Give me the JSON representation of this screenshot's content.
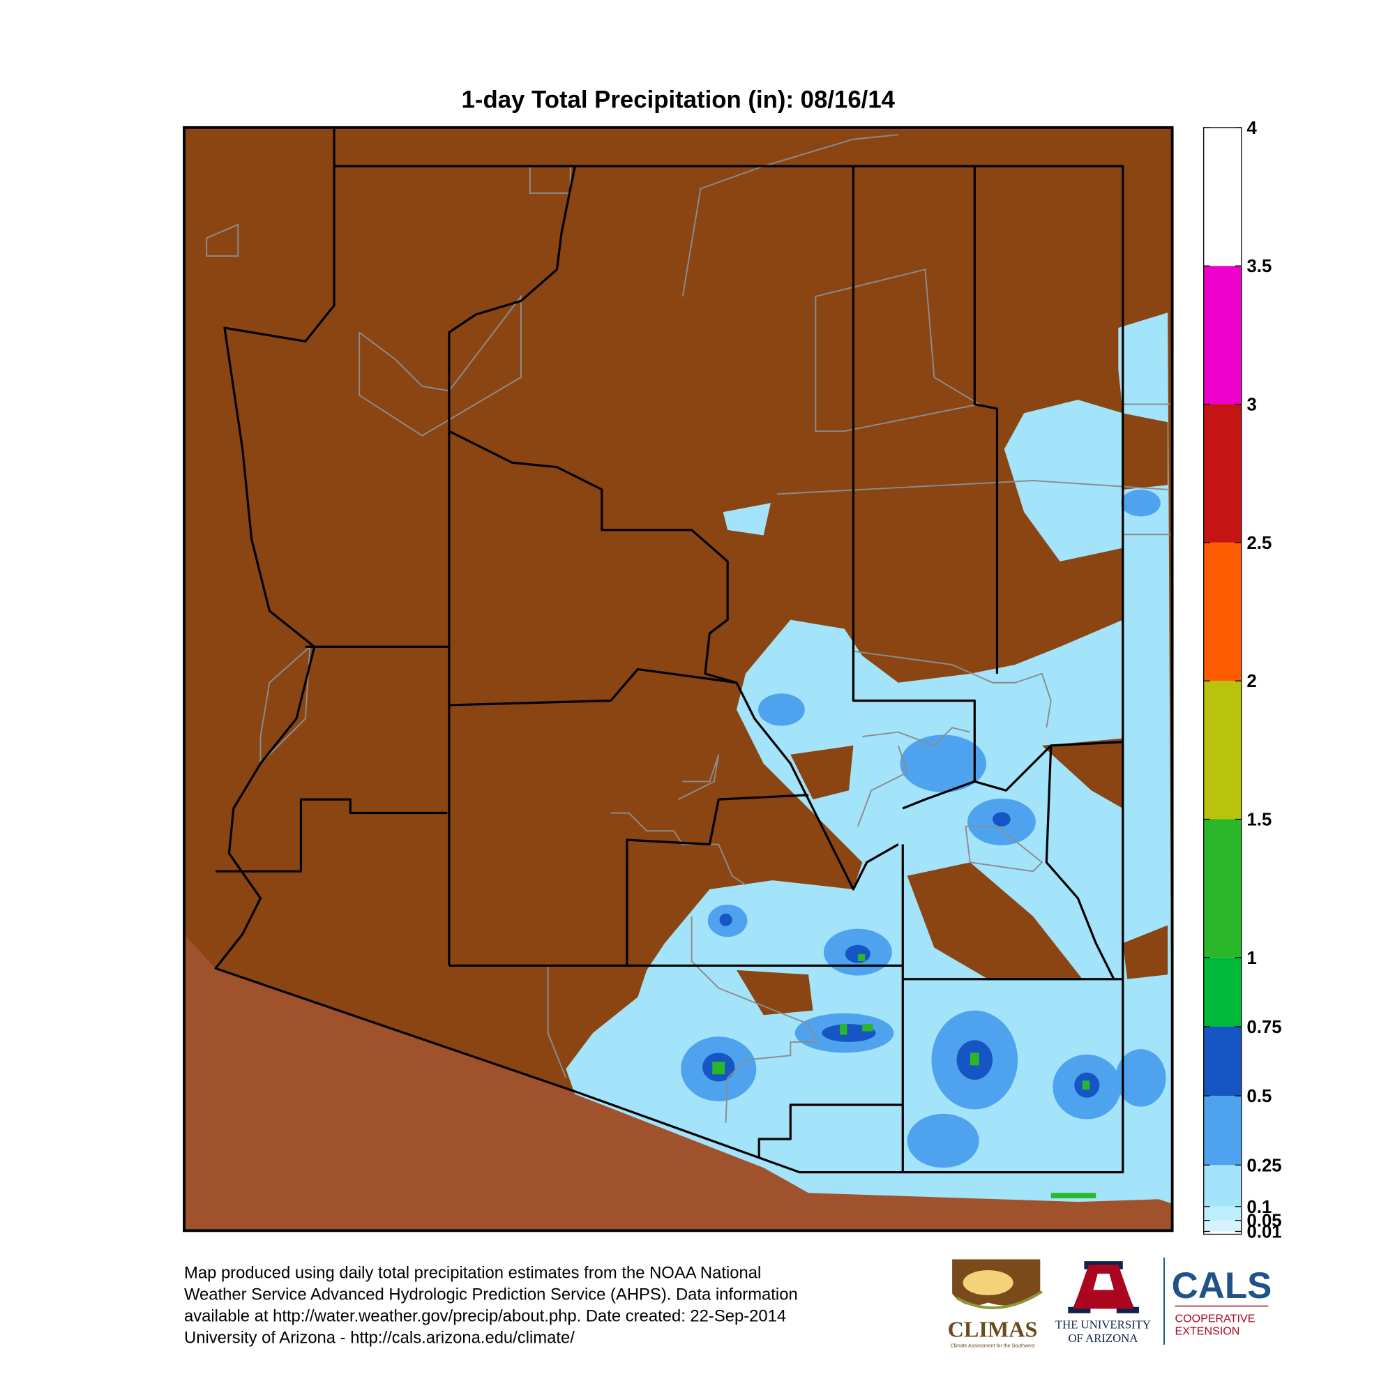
{
  "title": "1-day Total Precipitation (in): 08/16/14",
  "colorbar": {
    "lim": [
      0,
      4
    ],
    "ticks": [
      0.01,
      0.05,
      0.1,
      0.25,
      0.5,
      0.75,
      1,
      1.5,
      2,
      2.5,
      3,
      3.5,
      4
    ],
    "colors": [
      "#d6f3fc",
      "#bdeefc",
      "#a3e4fa",
      "#4fa3ee",
      "#1556c4",
      "#00b83a",
      "#2ab82a",
      "#b9c30c",
      "#ff5c00",
      "#c41414",
      "#ee00cc",
      "#ffffff"
    ]
  },
  "footer": {
    "lines": [
      "Map produced using daily total precipitation estimates from the NOAA National",
      "Weather Service Advanced Hydrologic Prediction Service (AHPS). Data information",
      "available at http://water.weather.gov/precip/about.php. Date created: 22-Sep-2014",
      "University of Arizona - http://cals.arizona.edu/climate/"
    ]
  },
  "logos": {
    "climas": {
      "name": "CLIMAS",
      "tagline": "Climate Assessment for the Southwest"
    },
    "university": {
      "lines": [
        "THE UNIVERSITY",
        "OF ARIZONA"
      ]
    },
    "cals": {
      "name": "CALS",
      "lines": [
        "COOPERATIVE",
        "EXTENSION"
      ]
    }
  }
}
